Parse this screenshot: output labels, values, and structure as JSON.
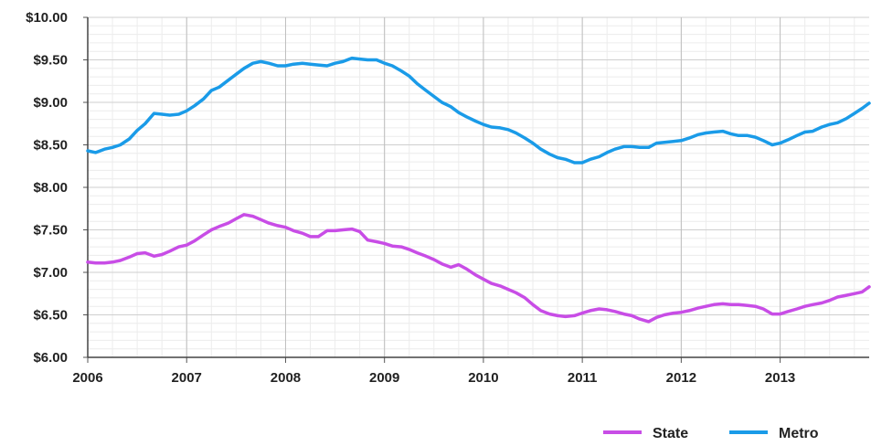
{
  "chart_data": {
    "type": "line",
    "title": "",
    "xlabel": "",
    "ylabel": "",
    "x_ticks": [
      "2006",
      "2007",
      "2008",
      "2009",
      "2010",
      "2011",
      "2012",
      "2013"
    ],
    "y_ticks": [
      "$6.00",
      "$6.50",
      "$7.00",
      "$7.50",
      "$8.00",
      "$8.50",
      "$9.00",
      "$9.50",
      "$10.00"
    ],
    "xlim": [
      2006.0,
      2013.9
    ],
    "ylim": [
      6.0,
      10.0
    ],
    "grid": true,
    "legend_position": "bottom-right",
    "series": [
      {
        "name": "State",
        "color": "#c84de6",
        "points": [
          [
            2006.0,
            7.12
          ],
          [
            2006.08,
            7.11
          ],
          [
            2006.17,
            7.11
          ],
          [
            2006.25,
            7.12
          ],
          [
            2006.33,
            7.14
          ],
          [
            2006.42,
            7.18
          ],
          [
            2006.5,
            7.22
          ],
          [
            2006.58,
            7.23
          ],
          [
            2006.67,
            7.19
          ],
          [
            2006.75,
            7.21
          ],
          [
            2006.83,
            7.25
          ],
          [
            2006.92,
            7.3
          ],
          [
            2007.0,
            7.32
          ],
          [
            2007.08,
            7.37
          ],
          [
            2007.17,
            7.44
          ],
          [
            2007.25,
            7.5
          ],
          [
            2007.33,
            7.54
          ],
          [
            2007.42,
            7.58
          ],
          [
            2007.5,
            7.63
          ],
          [
            2007.58,
            7.68
          ],
          [
            2007.67,
            7.66
          ],
          [
            2007.75,
            7.62
          ],
          [
            2007.83,
            7.58
          ],
          [
            2007.92,
            7.55
          ],
          [
            2008.0,
            7.53
          ],
          [
            2008.08,
            7.49
          ],
          [
            2008.17,
            7.46
          ],
          [
            2008.25,
            7.42
          ],
          [
            2008.33,
            7.42
          ],
          [
            2008.42,
            7.49
          ],
          [
            2008.5,
            7.49
          ],
          [
            2008.58,
            7.5
          ],
          [
            2008.67,
            7.51
          ],
          [
            2008.75,
            7.48
          ],
          [
            2008.83,
            7.38
          ],
          [
            2008.92,
            7.36
          ],
          [
            2009.0,
            7.34
          ],
          [
            2009.08,
            7.31
          ],
          [
            2009.17,
            7.3
          ],
          [
            2009.25,
            7.27
          ],
          [
            2009.33,
            7.23
          ],
          [
            2009.42,
            7.19
          ],
          [
            2009.5,
            7.15
          ],
          [
            2009.58,
            7.1
          ],
          [
            2009.67,
            7.06
          ],
          [
            2009.75,
            7.09
          ],
          [
            2009.83,
            7.04
          ],
          [
            2009.92,
            6.97
          ],
          [
            2010.0,
            6.92
          ],
          [
            2010.08,
            6.87
          ],
          [
            2010.17,
            6.84
          ],
          [
            2010.25,
            6.8
          ],
          [
            2010.33,
            6.76
          ],
          [
            2010.42,
            6.7
          ],
          [
            2010.5,
            6.62
          ],
          [
            2010.58,
            6.55
          ],
          [
            2010.67,
            6.51
          ],
          [
            2010.75,
            6.49
          ],
          [
            2010.83,
            6.48
          ],
          [
            2010.92,
            6.49
          ],
          [
            2011.0,
            6.52
          ],
          [
            2011.08,
            6.55
          ],
          [
            2011.17,
            6.57
          ],
          [
            2011.25,
            6.56
          ],
          [
            2011.33,
            6.54
          ],
          [
            2011.42,
            6.51
          ],
          [
            2011.5,
            6.49
          ],
          [
            2011.58,
            6.45
          ],
          [
            2011.67,
            6.42
          ],
          [
            2011.75,
            6.47
          ],
          [
            2011.83,
            6.5
          ],
          [
            2011.92,
            6.52
          ],
          [
            2012.0,
            6.53
          ],
          [
            2012.08,
            6.55
          ],
          [
            2012.17,
            6.58
          ],
          [
            2012.25,
            6.6
          ],
          [
            2012.33,
            6.62
          ],
          [
            2012.42,
            6.63
          ],
          [
            2012.5,
            6.62
          ],
          [
            2012.58,
            6.62
          ],
          [
            2012.67,
            6.61
          ],
          [
            2012.75,
            6.6
          ],
          [
            2012.83,
            6.57
          ],
          [
            2012.92,
            6.51
          ],
          [
            2013.0,
            6.51
          ],
          [
            2013.08,
            6.54
          ],
          [
            2013.17,
            6.57
          ],
          [
            2013.25,
            6.6
          ],
          [
            2013.33,
            6.62
          ],
          [
            2013.42,
            6.64
          ],
          [
            2013.5,
            6.67
          ],
          [
            2013.58,
            6.71
          ],
          [
            2013.67,
            6.73
          ],
          [
            2013.75,
            6.75
          ],
          [
            2013.83,
            6.77
          ],
          [
            2013.9,
            6.83
          ]
        ]
      },
      {
        "name": "Metro",
        "color": "#1a9be8",
        "points": [
          [
            2006.0,
            8.43
          ],
          [
            2006.08,
            8.41
          ],
          [
            2006.17,
            8.45
          ],
          [
            2006.25,
            8.47
          ],
          [
            2006.33,
            8.5
          ],
          [
            2006.42,
            8.57
          ],
          [
            2006.5,
            8.67
          ],
          [
            2006.58,
            8.75
          ],
          [
            2006.67,
            8.87
          ],
          [
            2006.75,
            8.86
          ],
          [
            2006.83,
            8.85
          ],
          [
            2006.92,
            8.86
          ],
          [
            2007.0,
            8.9
          ],
          [
            2007.08,
            8.96
          ],
          [
            2007.17,
            9.04
          ],
          [
            2007.25,
            9.14
          ],
          [
            2007.33,
            9.18
          ],
          [
            2007.42,
            9.26
          ],
          [
            2007.5,
            9.33
          ],
          [
            2007.58,
            9.4
          ],
          [
            2007.67,
            9.46
          ],
          [
            2007.75,
            9.48
          ],
          [
            2007.83,
            9.46
          ],
          [
            2007.92,
            9.43
          ],
          [
            2008.0,
            9.43
          ],
          [
            2008.08,
            9.45
          ],
          [
            2008.17,
            9.46
          ],
          [
            2008.25,
            9.45
          ],
          [
            2008.33,
            9.44
          ],
          [
            2008.42,
            9.43
          ],
          [
            2008.5,
            9.46
          ],
          [
            2008.58,
            9.48
          ],
          [
            2008.67,
            9.52
          ],
          [
            2008.75,
            9.51
          ],
          [
            2008.83,
            9.5
          ],
          [
            2008.92,
            9.5
          ],
          [
            2009.0,
            9.46
          ],
          [
            2009.08,
            9.43
          ],
          [
            2009.17,
            9.37
          ],
          [
            2009.25,
            9.31
          ],
          [
            2009.33,
            9.22
          ],
          [
            2009.42,
            9.14
          ],
          [
            2009.5,
            9.07
          ],
          [
            2009.58,
            9.0
          ],
          [
            2009.67,
            8.95
          ],
          [
            2009.75,
            8.88
          ],
          [
            2009.83,
            8.83
          ],
          [
            2009.92,
            8.78
          ],
          [
            2010.0,
            8.74
          ],
          [
            2010.08,
            8.71
          ],
          [
            2010.17,
            8.7
          ],
          [
            2010.25,
            8.68
          ],
          [
            2010.33,
            8.64
          ],
          [
            2010.42,
            8.58
          ],
          [
            2010.5,
            8.52
          ],
          [
            2010.58,
            8.45
          ],
          [
            2010.67,
            8.39
          ],
          [
            2010.75,
            8.35
          ],
          [
            2010.83,
            8.33
          ],
          [
            2010.92,
            8.29
          ],
          [
            2011.0,
            8.29
          ],
          [
            2011.08,
            8.33
          ],
          [
            2011.17,
            8.36
          ],
          [
            2011.25,
            8.41
          ],
          [
            2011.33,
            8.45
          ],
          [
            2011.42,
            8.48
          ],
          [
            2011.5,
            8.48
          ],
          [
            2011.58,
            8.47
          ],
          [
            2011.67,
            8.47
          ],
          [
            2011.75,
            8.52
          ],
          [
            2011.83,
            8.53
          ],
          [
            2011.92,
            8.54
          ],
          [
            2012.0,
            8.55
          ],
          [
            2012.08,
            8.58
          ],
          [
            2012.17,
            8.62
          ],
          [
            2012.25,
            8.64
          ],
          [
            2012.33,
            8.65
          ],
          [
            2012.42,
            8.66
          ],
          [
            2012.5,
            8.63
          ],
          [
            2012.58,
            8.61
          ],
          [
            2012.67,
            8.61
          ],
          [
            2012.75,
            8.59
          ],
          [
            2012.83,
            8.55
          ],
          [
            2012.92,
            8.5
          ],
          [
            2013.0,
            8.52
          ],
          [
            2013.08,
            8.56
          ],
          [
            2013.17,
            8.61
          ],
          [
            2013.25,
            8.65
          ],
          [
            2013.33,
            8.66
          ],
          [
            2013.42,
            8.71
          ],
          [
            2013.5,
            8.74
          ],
          [
            2013.58,
            8.76
          ],
          [
            2013.67,
            8.81
          ],
          [
            2013.75,
            8.87
          ],
          [
            2013.83,
            8.93
          ],
          [
            2013.9,
            8.99
          ]
        ]
      }
    ]
  }
}
